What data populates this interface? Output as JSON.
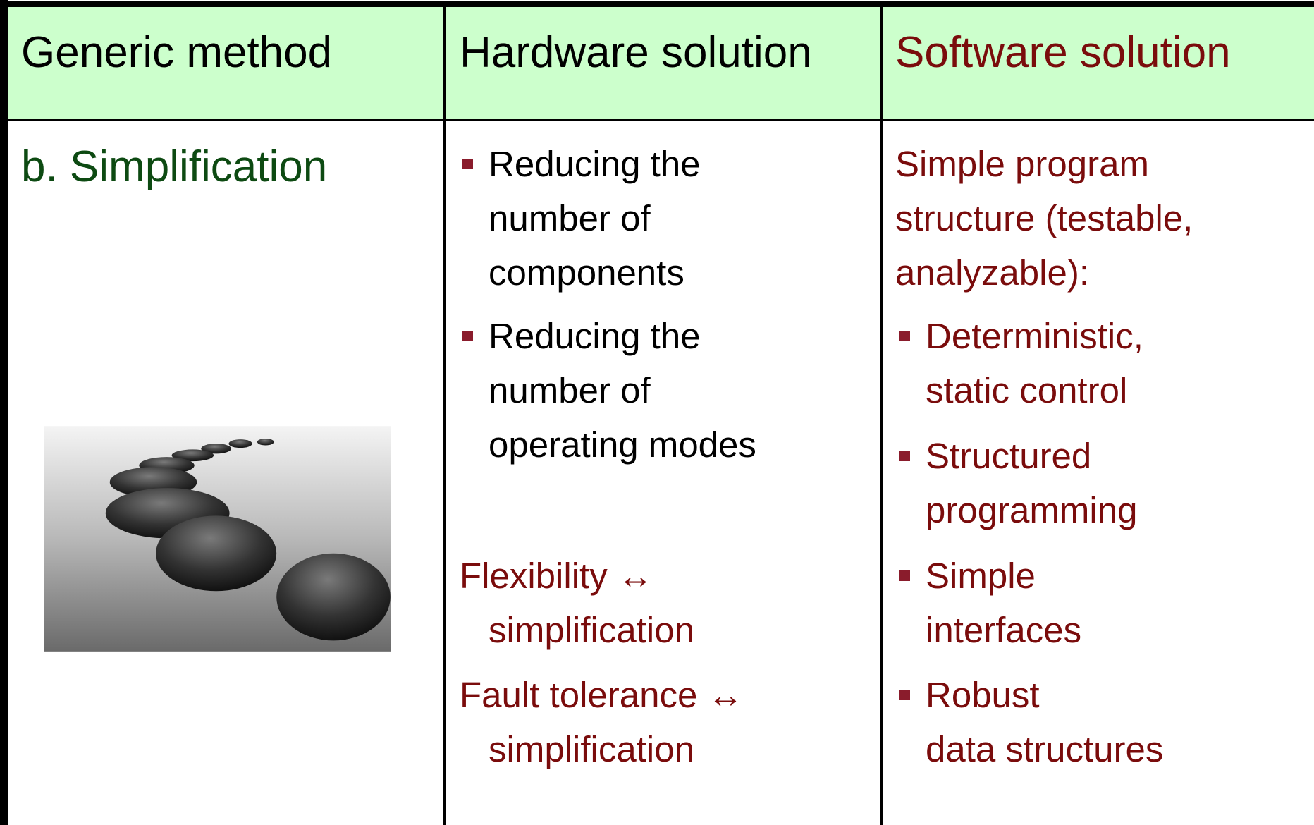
{
  "table": {
    "header": [
      "Generic method",
      "Hardware solution",
      "Software solution"
    ],
    "rows": [
      {
        "method": "b. Simplification",
        "hardware": {
          "bullets": [
            [
              "Reducing the",
              "number of",
              "components"
            ],
            [
              "Reducing the",
              "number of",
              "operating modes"
            ]
          ],
          "notes": [
            [
              "Flexibility ↔",
              "simplification"
            ],
            [
              "Fault tolerance ↔",
              "simplification"
            ]
          ]
        },
        "software": {
          "intro": [
            "Simple program",
            "structure (testable,",
            "analyzable):"
          ],
          "bullets": [
            [
              "Deterministic,",
              "static control"
            ],
            [
              "Structured",
              "programming"
            ],
            [
              "Simple",
              "interfaces"
            ],
            [
              "Robust",
              "data structures"
            ]
          ]
        }
      }
    ]
  }
}
